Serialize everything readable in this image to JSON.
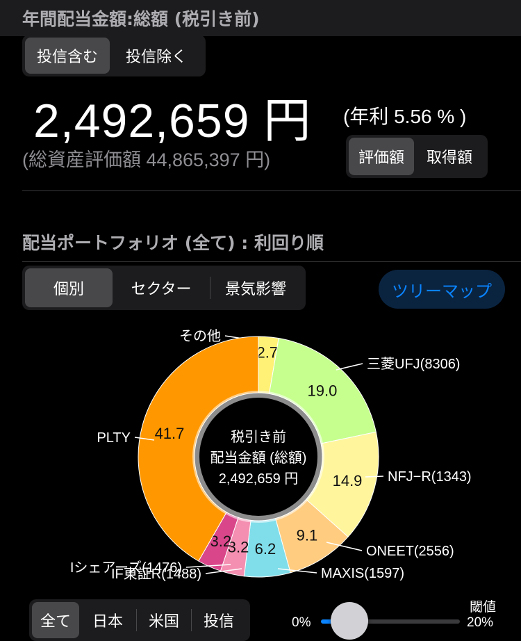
{
  "header": {
    "title": "年間配当金額:総額 (税引き前)"
  },
  "fund_toggle": {
    "options": [
      "投信含む",
      "投信除く"
    ],
    "selected": 0
  },
  "summary": {
    "amount": "2,492,659 円",
    "rate": "(年利 5.56 % )",
    "total_assets": "(総資産評価額 44,865,397 円)"
  },
  "value_toggle": {
    "options": [
      "評価額",
      "取得額"
    ],
    "selected": 0
  },
  "portfolio": {
    "title": "配当ポートフォリオ (全て) : 利回り順",
    "view_tabs": [
      "個別",
      "セクター",
      "景気影響"
    ],
    "selected_tab": 0,
    "treemap_button": "ツリーマップ"
  },
  "chart_data": {
    "type": "pie",
    "center_text": [
      "税引き前",
      "配当金額 (総額)",
      "2,492,659 円"
    ],
    "slices": [
      {
        "label": "その他",
        "value": 2.7,
        "value_label": "2.7",
        "color": "#fff176"
      },
      {
        "label": "三菱UFJ(8306)",
        "value": 19.0,
        "value_label": "19.0",
        "color": "#c6ff8e"
      },
      {
        "label": "NFJ−R(1343)",
        "value": 14.9,
        "value_label": "14.9",
        "color": "#fff59d"
      },
      {
        "label": "ONEET(2556)",
        "value": 9.1,
        "value_label": "9.1",
        "color": "#ffcc80"
      },
      {
        "label": "MAXIS(1597)",
        "value": 6.2,
        "value_label": "6.2",
        "color": "#80deea"
      },
      {
        "label": "IF東証R(1488)",
        "value": 3.2,
        "value_label": "3.2",
        "color": "#f48fb1"
      },
      {
        "label": "Iシェアーズ(1476)",
        "value": 3.2,
        "value_label": "3.2",
        "color": "#d9478a"
      },
      {
        "label": "PLTY",
        "value": 41.7,
        "value_label": "41.7",
        "color": "#ff9800"
      }
    ]
  },
  "region_tabs": {
    "options": [
      "全て",
      "日本",
      "米国",
      "投信"
    ],
    "selected": 0
  },
  "threshold": {
    "label": "閾値",
    "min_label": "0%",
    "max_label": "20%",
    "value_fraction": 0.1
  }
}
